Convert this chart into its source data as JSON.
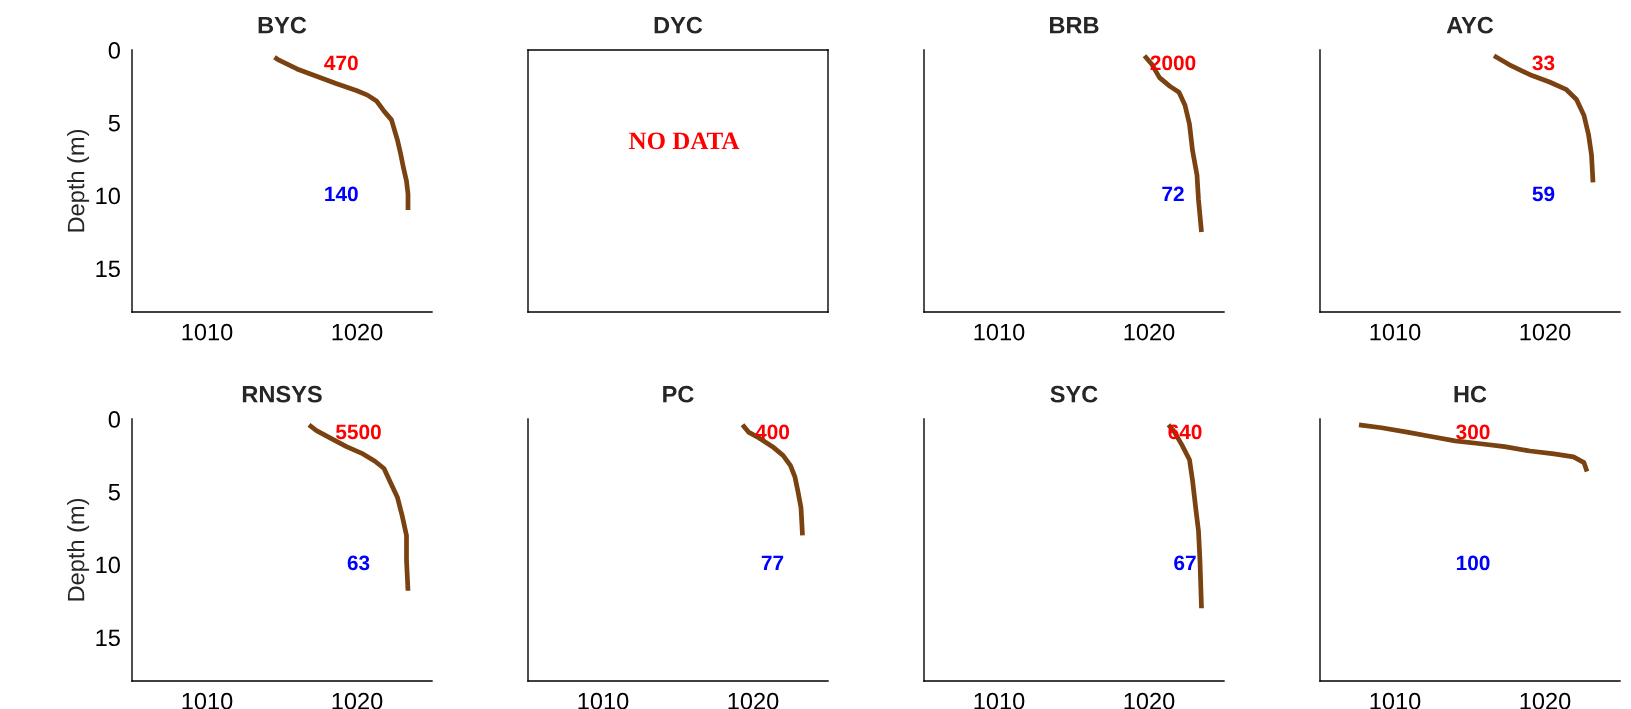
{
  "chart_data": [
    {
      "type": "line",
      "title": "BYC",
      "ylabel": "Depth (m)",
      "xlim": [
        1005,
        1025
      ],
      "ylim": [
        18,
        0
      ],
      "xticks": [
        1010,
        1020
      ],
      "yticks": [
        0,
        5,
        10,
        15
      ],
      "series": [
        {
          "color": "#7a4210",
          "x": [
            1014.5,
            1014.8,
            1016.0,
            1017.3,
            1018.6,
            1020.0,
            1020.7,
            1021.3,
            1021.8,
            1022.3,
            1022.5,
            1022.7,
            1022.9,
            1023.1,
            1023.3,
            1023.4,
            1023.4
          ],
          "values": [
            0.5,
            0.7,
            1.3,
            1.8,
            2.3,
            2.8,
            3.1,
            3.5,
            4.2,
            4.8,
            5.5,
            6.2,
            7.1,
            8.1,
            9.0,
            9.9,
            11.0
          ]
        }
      ],
      "annotations": [
        "470",
        "140"
      ]
    },
    {
      "type": "other",
      "title": "DYC",
      "annotations": [
        "NO DATA"
      ]
    },
    {
      "type": "line",
      "title": "BRB",
      "xlim": [
        1005,
        1025
      ],
      "ylim": [
        18,
        0
      ],
      "xticks": [
        1010,
        1020
      ],
      "yticks": [
        0,
        5,
        10,
        15
      ],
      "tick_labels": "x",
      "series": [
        {
          "color": "#7a4210",
          "x": [
            1019.7,
            1020.2,
            1020.7,
            1021.4,
            1022.0,
            1022.4,
            1022.7,
            1022.9,
            1023.2,
            1023.3,
            1023.5
          ],
          "values": [
            0.4,
            1.0,
            1.9,
            2.5,
            2.9,
            3.8,
            5.1,
            6.9,
            8.6,
            10.3,
            12.5
          ]
        }
      ],
      "annotations": [
        "2000",
        "72"
      ]
    },
    {
      "type": "line",
      "title": "AYC",
      "xlim": [
        1005,
        1025
      ],
      "ylim": [
        18,
        0
      ],
      "xticks": [
        1010,
        1020
      ],
      "yticks": [
        0,
        5,
        10,
        15
      ],
      "tick_labels": "x",
      "series": [
        {
          "color": "#7a4210",
          "x": [
            1016.6,
            1017.6,
            1019.0,
            1020.3,
            1021.4,
            1022.1,
            1022.6,
            1022.9,
            1023.1,
            1023.2
          ],
          "values": [
            0.4,
            1.0,
            1.7,
            2.2,
            2.7,
            3.4,
            4.5,
            5.8,
            7.2,
            9.1
          ]
        }
      ],
      "annotations": [
        "33",
        "59"
      ]
    },
    {
      "type": "line",
      "title": "RNSYS",
      "ylabel": "Depth (m)",
      "xlim": [
        1005,
        1025
      ],
      "ylim": [
        18,
        0
      ],
      "xticks": [
        1010,
        1020
      ],
      "yticks": [
        0,
        5,
        10,
        15
      ],
      "series": [
        {
          "color": "#7a4210",
          "x": [
            1016.8,
            1017.3,
            1018.2,
            1019.3,
            1020.4,
            1021.2,
            1021.8,
            1022.2,
            1022.7,
            1023.0,
            1023.3,
            1023.3,
            1023.4
          ],
          "values": [
            0.4,
            0.8,
            1.3,
            1.9,
            2.4,
            2.9,
            3.4,
            4.3,
            5.4,
            6.6,
            8.0,
            9.7,
            11.8
          ]
        }
      ],
      "annotations": [
        "5500",
        "63"
      ]
    },
    {
      "type": "line",
      "title": "PC",
      "xlim": [
        1005,
        1025
      ],
      "ylim": [
        18,
        0
      ],
      "xticks": [
        1010,
        1020
      ],
      "yticks": [
        0,
        5,
        10,
        15
      ],
      "tick_labels": "x",
      "series": [
        {
          "color": "#7a4210",
          "x": [
            1019.3,
            1019.7,
            1020.4,
            1021.3,
            1022.0,
            1022.5,
            1022.8,
            1023.0,
            1023.2,
            1023.3
          ],
          "values": [
            0.4,
            0.9,
            1.3,
            1.9,
            2.5,
            3.2,
            4.0,
            5.0,
            6.1,
            8.0
          ]
        }
      ],
      "annotations": [
        "400",
        "77"
      ]
    },
    {
      "type": "line",
      "title": "SYC",
      "xlim": [
        1005,
        1025
      ],
      "ylim": [
        18,
        0
      ],
      "xticks": [
        1010,
        1020
      ],
      "yticks": [
        0,
        5,
        10,
        15
      ],
      "tick_labels": "x",
      "series": [
        {
          "color": "#7a4210",
          "x": [
            1021.3,
            1021.7,
            1022.2,
            1022.7,
            1022.9,
            1023.1,
            1023.3,
            1023.4,
            1023.5
          ],
          "values": [
            0.4,
            0.9,
            1.8,
            2.8,
            4.2,
            6.0,
            7.7,
            9.8,
            13.0
          ]
        }
      ],
      "annotations": [
        "640",
        "67"
      ]
    },
    {
      "type": "line",
      "title": "HC",
      "xlim": [
        1005,
        1025
      ],
      "ylim": [
        18,
        0
      ],
      "xticks": [
        1010,
        1020
      ],
      "yticks": [
        0,
        5,
        10,
        15
      ],
      "tick_labels": "x",
      "series": [
        {
          "color": "#7a4210",
          "x": [
            1007.6,
            1009.1,
            1010.8,
            1012.4,
            1014.0,
            1015.7,
            1017.3,
            1019.0,
            1020.6,
            1021.9,
            1022.6,
            1022.8
          ],
          "values": [
            0.4,
            0.6,
            0.9,
            1.2,
            1.5,
            1.7,
            1.9,
            2.2,
            2.4,
            2.6,
            3.0,
            3.6
          ]
        }
      ],
      "annotations": [
        "300",
        "100"
      ]
    }
  ]
}
